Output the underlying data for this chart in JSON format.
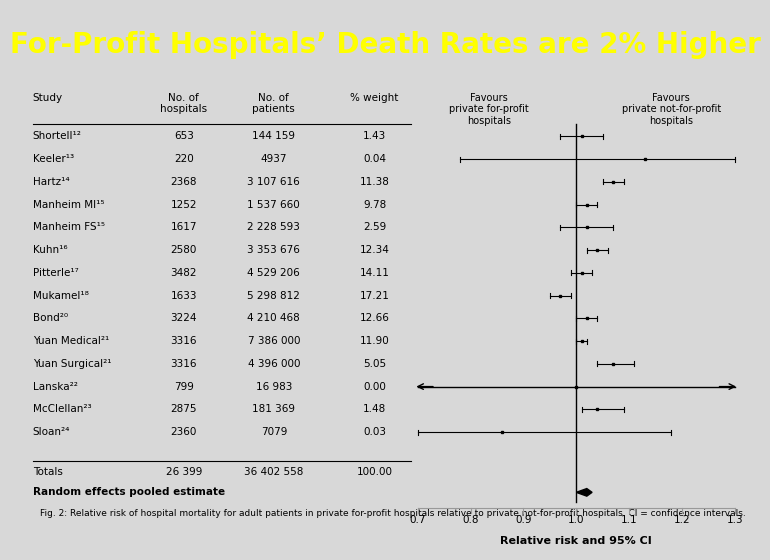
{
  "title": "For-Profit Hospitals’ Death Rates are 2% Higher",
  "title_color": "#FFFF00",
  "title_bg_color": "#0000CC",
  "body_bg_color": "#D8D8D8",
  "fig_caption": "Fig. 2: Relative risk of hospital mortality for adult patients in private for-profit hospitals relative to private not-for-profit hospitals. CI = confidence intervals.",
  "studies": [
    {
      "name": "Shortell¹²",
      "hospitals": "653",
      "patients": "144 159",
      "weight": "1.43",
      "rr": 1.01,
      "lo": 0.97,
      "hi": 1.05,
      "arrow": false
    },
    {
      "name": "Keeler¹³",
      "hospitals": "220",
      "patients": "4937",
      "weight": "0.04",
      "rr": 1.13,
      "lo": 0.78,
      "hi": 1.3,
      "arrow": false
    },
    {
      "name": "Hartz¹⁴",
      "hospitals": "2368",
      "patients": "3 107 616",
      "weight": "11.38",
      "rr": 1.07,
      "lo": 1.05,
      "hi": 1.09,
      "arrow": false
    },
    {
      "name": "Manheim MI¹⁵",
      "hospitals": "1252",
      "patients": "1 537 660",
      "weight": "9.78",
      "rr": 1.02,
      "lo": 1.0,
      "hi": 1.04,
      "arrow": false
    },
    {
      "name": "Manheim FS¹⁵",
      "hospitals": "1617",
      "patients": "2 228 593",
      "weight": "2.59",
      "rr": 1.02,
      "lo": 0.97,
      "hi": 1.07,
      "arrow": false
    },
    {
      "name": "Kuhn¹⁶",
      "hospitals": "2580",
      "patients": "3 353 676",
      "weight": "12.34",
      "rr": 1.04,
      "lo": 1.02,
      "hi": 1.06,
      "arrow": false
    },
    {
      "name": "Pitterle¹⁷",
      "hospitals": "3482",
      "patients": "4 529 206",
      "weight": "14.11",
      "rr": 1.01,
      "lo": 0.99,
      "hi": 1.03,
      "arrow": false
    },
    {
      "name": "Mukamel¹⁸",
      "hospitals": "1633",
      "patients": "5 298 812",
      "weight": "17.21",
      "rr": 0.97,
      "lo": 0.95,
      "hi": 0.99,
      "arrow": false
    },
    {
      "name": "Bond²⁰",
      "hospitals": "3224",
      "patients": "4 210 468",
      "weight": "12.66",
      "rr": 1.02,
      "lo": 1.0,
      "hi": 1.04,
      "arrow": false
    },
    {
      "name": "Yuan Medical²¹",
      "hospitals": "3316",
      "patients": "7 386 000",
      "weight": "11.90",
      "rr": 1.01,
      "lo": 1.0,
      "hi": 1.02,
      "arrow": false
    },
    {
      "name": "Yuan Surgical²¹",
      "hospitals": "3316",
      "patients": "4 396 000",
      "weight": "5.05",
      "rr": 1.07,
      "lo": 1.04,
      "hi": 1.11,
      "arrow": false
    },
    {
      "name": "Lanska²²",
      "hospitals": "799",
      "patients": "16 983",
      "weight": "0.00",
      "rr": 1.0,
      "lo": 0.7,
      "hi": 1.3,
      "arrow": true
    },
    {
      "name": "McClellan²³",
      "hospitals": "2875",
      "patients": "181 369",
      "weight": "1.48",
      "rr": 1.04,
      "lo": 1.01,
      "hi": 1.09,
      "arrow": false
    },
    {
      "name": "Sloan²⁴",
      "hospitals": "2360",
      "patients": "7079",
      "weight": "0.03",
      "rr": 0.86,
      "lo": 0.7,
      "hi": 1.18,
      "arrow": false
    }
  ],
  "totals": {
    "hospitals": "26 399",
    "patients": "36 402 558",
    "weight": "100.00"
  },
  "pooled": {
    "rr": 1.02,
    "lo": 1.0,
    "hi": 1.03
  },
  "xmin": 0.7,
  "xmax": 1.3,
  "xticks": [
    0.7,
    0.8,
    0.9,
    1.0,
    1.1,
    1.2,
    1.3
  ],
  "xlabel": "Relative risk and 95% CI",
  "favour_left": "Favours\nprivate for-profit\nhospitals",
  "favour_right": "Favours\nprivate not-for-profit\nhospitals"
}
